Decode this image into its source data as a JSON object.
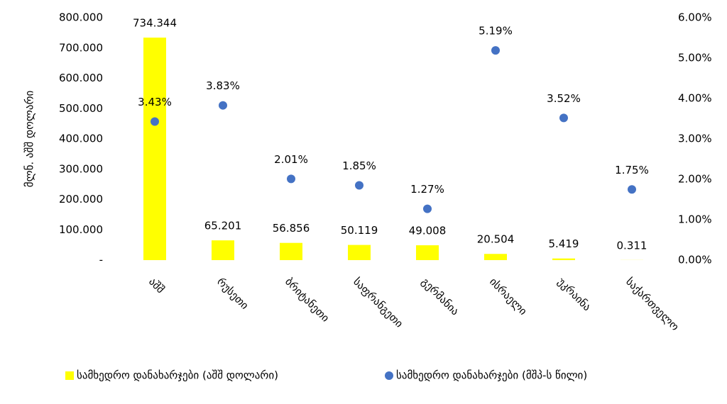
{
  "chart_data": {
    "type": "bar",
    "y_label": "მლნ. აშშ დოლარი",
    "categories": [
      "აშშ",
      "რუსეთი",
      "ბრიტანეთი",
      "საფრანგეთი",
      "გერმანია",
      "ისრაელი",
      "უკრაინა",
      "საქართველო"
    ],
    "series": [
      {
        "name": "სამხედრო დანახარჯები (აშშ დოლარი)",
        "type": "bar",
        "color": "#ffff00",
        "axis": "y",
        "values": [
          734344,
          65201,
          56856,
          50119,
          49008,
          20504,
          5419,
          311
        ],
        "value_labels": [
          "734.344",
          "65.201",
          "56.856",
          "50.119",
          "49.008",
          "20.504",
          "5.419",
          "0.311"
        ]
      },
      {
        "name": "სამხედრო დანახარჯები (მშპ-ს წილი)",
        "type": "scatter",
        "color": "#4472c4",
        "axis": "y2",
        "values": [
          3.43,
          3.83,
          2.01,
          1.85,
          1.27,
          5.19,
          3.52,
          1.75
        ],
        "value_labels": [
          "3.43%",
          "3.83%",
          "2.01%",
          "1.85%",
          "1.27%",
          "5.19%",
          "3.52%",
          "1.75%"
        ]
      }
    ],
    "ylim": [
      0,
      800000
    ],
    "yticks": [
      {
        "value": 0,
        "label": "-"
      },
      {
        "value": 100000,
        "label": "100.000"
      },
      {
        "value": 200000,
        "label": "200.000"
      },
      {
        "value": 300000,
        "label": "300.000"
      },
      {
        "value": 400000,
        "label": "400.000"
      },
      {
        "value": 500000,
        "label": "500.000"
      },
      {
        "value": 600000,
        "label": "600.000"
      },
      {
        "value": 700000,
        "label": "700.000"
      },
      {
        "value": 800000,
        "label": "800.000"
      }
    ],
    "y2lim": [
      0,
      6
    ],
    "y2ticks": [
      {
        "value": 0,
        "label": "0.00%"
      },
      {
        "value": 1,
        "label": "1.00%"
      },
      {
        "value": 2,
        "label": "2.00%"
      },
      {
        "value": 3,
        "label": "3.00%"
      },
      {
        "value": 4,
        "label": "4.00%"
      },
      {
        "value": 5,
        "label": "5.00%"
      },
      {
        "value": 6,
        "label": "6.00%"
      }
    ],
    "legend": "bottom"
  }
}
